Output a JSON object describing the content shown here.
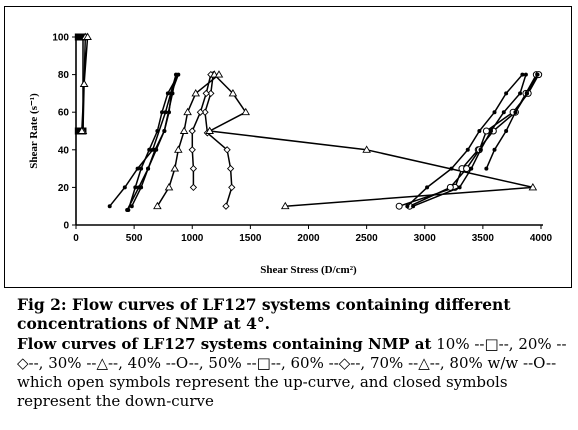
{
  "chart_data": {
    "type": "line",
    "xlabel": "Shear Stress (D/cm²)",
    "ylabel": "Shear Rate (s⁻¹)",
    "xlim": [
      0,
      4000
    ],
    "ylim": [
      0,
      100
    ],
    "xticks": [
      0,
      500,
      1000,
      1500,
      2000,
      2500,
      3000,
      3500,
      4000
    ],
    "yticks": [
      0,
      20,
      40,
      60,
      80,
      100
    ],
    "grid": false,
    "series": [
      {
        "marker": "square",
        "points": [
          [
            20,
            100
          ],
          [
            40,
            100
          ],
          [
            60,
            100
          ],
          [
            60,
            50
          ],
          [
            40,
            50
          ],
          [
            20,
            50
          ]
        ]
      },
      {
        "marker": "triangle",
        "points": [
          [
            60,
            50
          ],
          [
            70,
            75
          ],
          [
            80,
            100
          ],
          [
            100,
            100
          ],
          [
            70,
            75
          ],
          [
            50,
            50
          ]
        ]
      },
      {
        "marker": "dot",
        "points": [
          [
            290,
            10
          ],
          [
            420,
            20
          ],
          [
            530,
            30
          ],
          [
            660,
            40
          ],
          [
            770,
            60
          ],
          [
            860,
            80
          ],
          [
            830,
            70
          ],
          [
            760,
            50
          ],
          [
            680,
            40
          ],
          [
            620,
            30
          ],
          [
            560,
            20
          ],
          [
            480,
            10
          ]
        ]
      },
      {
        "marker": "dot",
        "points": [
          [
            440,
            8
          ],
          [
            540,
            20
          ],
          [
            620,
            30
          ],
          [
            690,
            40
          ],
          [
            760,
            50
          ],
          [
            800,
            60
          ],
          [
            820,
            70
          ],
          [
            880,
            80
          ],
          [
            790,
            70
          ],
          [
            740,
            60
          ],
          [
            700,
            50
          ],
          [
            630,
            40
          ],
          [
            560,
            30
          ],
          [
            510,
            20
          ],
          [
            450,
            8
          ]
        ]
      },
      {
        "marker": "diamond",
        "points": [
          [
            1290,
            10
          ],
          [
            1340,
            20
          ],
          [
            1330,
            30
          ],
          [
            1300,
            40
          ],
          [
            1130,
            49
          ],
          [
            1110,
            60
          ],
          [
            1160,
            70
          ],
          [
            1180,
            80
          ],
          [
            1160,
            80
          ],
          [
            1120,
            70
          ],
          [
            1070,
            60
          ],
          [
            1000,
            50
          ],
          [
            1000,
            40
          ],
          [
            1010,
            30
          ],
          [
            1010,
            20
          ]
        ]
      },
      {
        "marker": "triangle",
        "points": [
          [
            1800,
            10
          ],
          [
            3930,
            20
          ],
          [
            2500,
            40
          ],
          [
            1150,
            50
          ],
          [
            1460,
            60
          ],
          [
            1350,
            70
          ],
          [
            1190,
            80
          ],
          [
            1230,
            80
          ],
          [
            1030,
            70
          ],
          [
            960,
            60
          ],
          [
            930,
            50
          ],
          [
            880,
            40
          ],
          [
            850,
            30
          ],
          [
            800,
            20
          ],
          [
            700,
            10
          ]
        ]
      },
      {
        "marker": "circle",
        "points": [
          [
            2780,
            10
          ],
          [
            3260,
            20
          ],
          [
            3320,
            30
          ],
          [
            3460,
            40
          ],
          [
            3590,
            50
          ],
          [
            3780,
            60
          ],
          [
            3870,
            70
          ],
          [
            3960,
            80
          ],
          [
            3980,
            80
          ],
          [
            3890,
            70
          ],
          [
            3760,
            60
          ],
          [
            3530,
            50
          ],
          [
            3470,
            40
          ],
          [
            3360,
            30
          ],
          [
            3220,
            20
          ],
          [
            2870,
            10
          ]
        ]
      },
      {
        "marker": "dot",
        "points": [
          [
            2850,
            10
          ],
          [
            3020,
            20
          ],
          [
            3230,
            30
          ],
          [
            3370,
            40
          ],
          [
            3470,
            50
          ],
          [
            3600,
            60
          ],
          [
            3700,
            70
          ],
          [
            3840,
            80
          ],
          [
            3870,
            80
          ],
          [
            3820,
            70
          ],
          [
            3680,
            60
          ],
          [
            3570,
            50
          ],
          [
            3480,
            40
          ],
          [
            3400,
            30
          ],
          [
            3300,
            20
          ],
          [
            2900,
            10
          ]
        ]
      },
      {
        "marker": "dot",
        "points": [
          [
            3530,
            30
          ],
          [
            3600,
            40
          ],
          [
            3700,
            50
          ],
          [
            3780,
            60
          ],
          [
            3880,
            70
          ],
          [
            3970,
            80
          ]
        ]
      }
    ]
  },
  "caption": {
    "title": "Fig 2: Flow curves of LF127 systems containing different concentrations of NMP at 4°.",
    "body_bold": "Flow curves of LF127 systems containing NMP at",
    "body_rest": " 10% --□--, 20% --◇--, 30% --△--, 40% --O--, 50% --□--, 60% --◇--, 70% --△--, 80% w/w --O-- which open symbols represent the up-curve, and closed symbols represent the down-curve"
  }
}
